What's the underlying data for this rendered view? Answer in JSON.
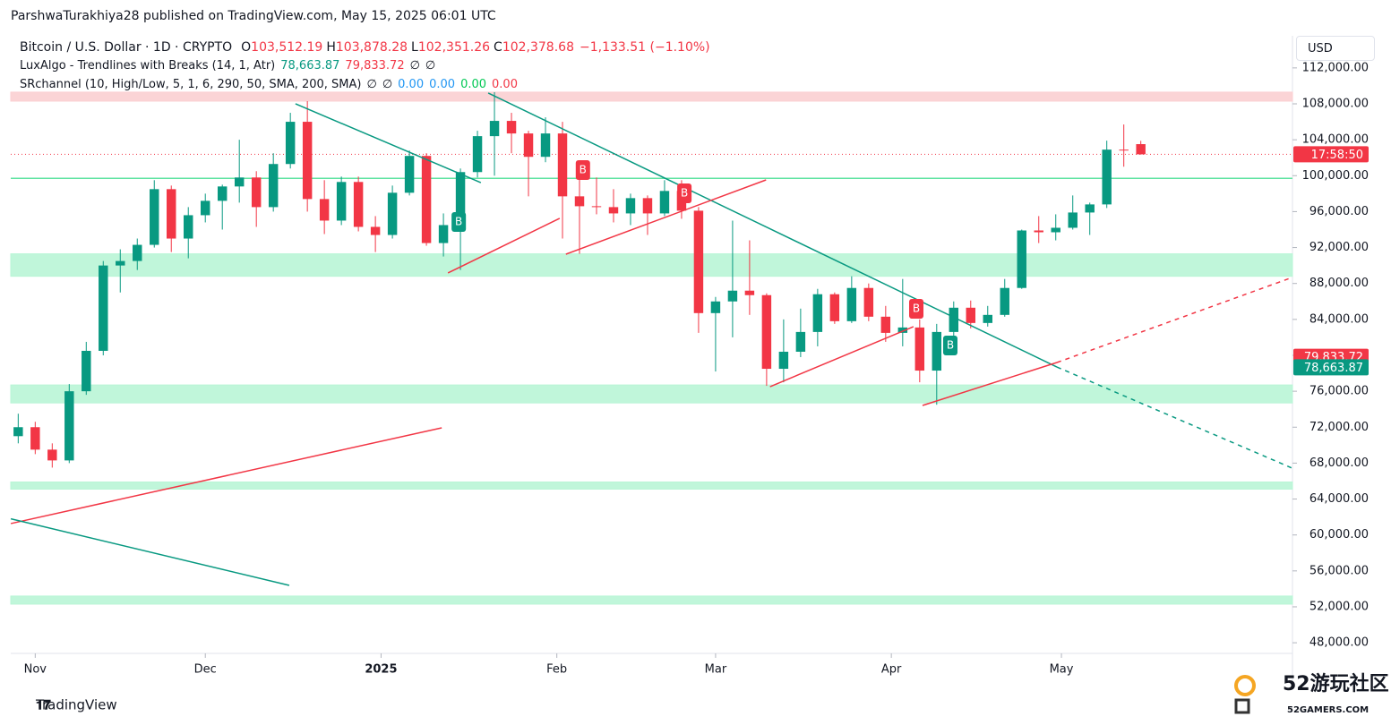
{
  "header": {
    "publisher": "ParshwaTurakhiya28 published on TradingView.com, May 15, 2025 06:01 UTC",
    "symbol": "Bitcoin / U.S. Dollar · 1D · CRYPTO",
    "ohlc": [
      {
        "label": "O",
        "value": "103,512.19"
      },
      {
        "label": "H",
        "value": "103,878.28"
      },
      {
        "label": "L",
        "value": "102,351.26"
      },
      {
        "label": "C",
        "value": "102,378.68"
      }
    ],
    "change": "−1,133.51 (−1.10%)",
    "currency": "USD",
    "brand": "TradingView",
    "watermark": "52游玩社区",
    "watermark_sub": "52GAMERS.COM"
  },
  "indicators": [
    {
      "name": "LuxAlgo - Trendlines with Breaks (14, 1, Atr)",
      "values": [
        {
          "text": "78,663.87",
          "color": "#089981"
        },
        {
          "text": "79,833.72",
          "color": "#f23645"
        },
        {
          "text": "∅",
          "color": "#131722"
        },
        {
          "text": "∅",
          "color": "#131722"
        }
      ]
    },
    {
      "name": "SRchannel (10, High/Low, 5, 1, 6, 290, 50, SMA, 200, SMA)",
      "values": [
        {
          "text": "∅",
          "color": "#131722"
        },
        {
          "text": "∅",
          "color": "#131722"
        },
        {
          "text": "0.00",
          "color": "#2196f3"
        },
        {
          "text": "0.00",
          "color": "#2196f3"
        },
        {
          "text": "0.00",
          "color": "#00c853"
        },
        {
          "text": "0.00",
          "color": "#f23645"
        }
      ]
    }
  ],
  "chart_data": {
    "type": "candlestick",
    "up_color": "#089981",
    "down_color": "#f23645",
    "x": [
      1,
      4,
      7,
      10,
      13,
      16,
      19,
      22,
      25,
      28,
      31,
      34,
      37,
      40,
      43,
      46,
      49,
      52,
      55,
      58,
      61,
      64,
      67,
      70,
      73,
      76,
      79,
      82,
      85,
      88,
      91,
      94,
      97,
      100,
      103,
      106,
      109,
      112,
      115,
      118,
      121,
      124,
      127,
      130,
      133,
      136,
      139,
      142,
      145,
      148,
      151,
      154,
      157,
      160,
      163,
      166,
      169,
      172,
      175,
      178,
      181,
      184,
      187,
      190,
      193,
      196,
      199
    ],
    "candles": [
      [
        71000,
        73500,
        70200,
        72000
      ],
      [
        72000,
        72600,
        69000,
        69500
      ],
      [
        69500,
        70200,
        67500,
        68300
      ],
      [
        68300,
        76800,
        68000,
        76000
      ],
      [
        76000,
        81500,
        75600,
        80500
      ],
      [
        80500,
        90500,
        80000,
        90000
      ],
      [
        90000,
        91800,
        87000,
        90500
      ],
      [
        90500,
        93000,
        89500,
        92300
      ],
      [
        92300,
        99500,
        92000,
        98500
      ],
      [
        98500,
        98900,
        91500,
        93000
      ],
      [
        93000,
        96500,
        90800,
        95600
      ],
      [
        95600,
        98000,
        94800,
        97200
      ],
      [
        97200,
        99000,
        94000,
        98800
      ],
      [
        98800,
        104000,
        97000,
        99800
      ],
      [
        99800,
        100500,
        94300,
        96500
      ],
      [
        96500,
        102500,
        96000,
        101300
      ],
      [
        101300,
        107000,
        100800,
        106000
      ],
      [
        106000,
        108300,
        96000,
        97400
      ],
      [
        97400,
        99500,
        93500,
        95000
      ],
      [
        95000,
        99900,
        94500,
        99300
      ],
      [
        99300,
        99900,
        93800,
        94300
      ],
      [
        94300,
        95500,
        91500,
        93400
      ],
      [
        93400,
        98900,
        93000,
        98100
      ],
      [
        98100,
        102800,
        97800,
        102200
      ],
      [
        102200,
        102500,
        92200,
        92500
      ],
      [
        92500,
        95800,
        91000,
        94500
      ],
      [
        94500,
        100800,
        89500,
        100400
      ],
      [
        100400,
        105000,
        99800,
        104400
      ],
      [
        104400,
        109300,
        100000,
        106100
      ],
      [
        106100,
        107000,
        102500,
        104700
      ],
      [
        104700,
        105000,
        97700,
        102100
      ],
      [
        102100,
        106500,
        101500,
        104700
      ],
      [
        104700,
        106000,
        93000,
        97700
      ],
      [
        97700,
        100500,
        91300,
        96600
      ],
      [
        96600,
        99800,
        95700,
        96500
      ],
      [
        96500,
        98500,
        94800,
        95800
      ],
      [
        95800,
        98000,
        94500,
        97500
      ],
      [
        97500,
        97800,
        93400,
        95800
      ],
      [
        95800,
        99500,
        95500,
        98300
      ],
      [
        98300,
        99500,
        95200,
        96100
      ],
      [
        96100,
        96500,
        82500,
        84700
      ],
      [
        84700,
        86500,
        78200,
        86000
      ],
      [
        86000,
        95000,
        82000,
        87200
      ],
      [
        87200,
        92800,
        84500,
        86700
      ],
      [
        86700,
        86900,
        76600,
        78500
      ],
      [
        78500,
        84000,
        77000,
        80400
      ],
      [
        80400,
        85200,
        79800,
        82600
      ],
      [
        82600,
        87400,
        81000,
        86800
      ],
      [
        86800,
        87000,
        83500,
        83800
      ],
      [
        83800,
        88800,
        83600,
        87500
      ],
      [
        87500,
        88000,
        83800,
        84300
      ],
      [
        84300,
        85500,
        81500,
        82500
      ],
      [
        82500,
        88500,
        81000,
        83100
      ],
      [
        83100,
        84000,
        77000,
        78300
      ],
      [
        78300,
        83500,
        74500,
        82600
      ],
      [
        82600,
        86000,
        80000,
        85300
      ],
      [
        85300,
        86100,
        83000,
        83600
      ],
      [
        83600,
        85500,
        83200,
        84500
      ],
      [
        84500,
        88500,
        84300,
        87500
      ],
      [
        87500,
        94000,
        87400,
        93900
      ],
      [
        93900,
        95500,
        92500,
        93700
      ],
      [
        93700,
        95700,
        92800,
        94200
      ],
      [
        94200,
        97800,
        94000,
        95900
      ],
      [
        95900,
        97000,
        93400,
        96800
      ],
      [
        96800,
        103900,
        96400,
        102900
      ],
      [
        102900,
        105700,
        101000,
        102800
      ],
      [
        103512.19,
        103878.28,
        102351.26,
        102378.68
      ]
    ],
    "xlim": [
      -0.316,
      225.75
    ],
    "ylim": [
      46815,
      115573
    ],
    "xticks": [
      {
        "value": 4,
        "label": "Nov"
      },
      {
        "value": 34,
        "label": "Dec"
      },
      {
        "value": 65,
        "label": "2025"
      },
      {
        "value": 96,
        "label": "Feb"
      },
      {
        "value": 124,
        "label": "Mar"
      },
      {
        "value": 155,
        "label": "Apr"
      },
      {
        "value": 185,
        "label": "May"
      }
    ],
    "yticks": [
      {
        "value": 48000,
        "label": "48,000.00"
      },
      {
        "value": 52000,
        "label": "52,000.00"
      },
      {
        "value": 56000,
        "label": "56,000.00"
      },
      {
        "value": 60000,
        "label": "60,000.00"
      },
      {
        "value": 64000,
        "label": "64,000.00"
      },
      {
        "value": 68000,
        "label": "68,000.00"
      },
      {
        "value": 72000,
        "label": "72,000.00"
      },
      {
        "value": 76000,
        "label": "76,000.00"
      },
      {
        "value": 80000,
        "label": "80,000.00"
      },
      {
        "value": 84000,
        "label": "84,000.00"
      },
      {
        "value": 88000,
        "label": "88,000.00"
      },
      {
        "value": 92000,
        "label": "92,000.00"
      },
      {
        "value": 96000,
        "label": "96,000.00"
      },
      {
        "value": 100000,
        "label": "100,000.00"
      },
      {
        "value": 104000,
        "label": "104,000.00"
      },
      {
        "value": 108000,
        "label": "108,000.00"
      },
      {
        "value": 112000,
        "label": "112,000.00"
      }
    ],
    "zones": [
      {
        "from": 108300,
        "to": 109300,
        "color": "#fbcfd2"
      },
      {
        "from": 88800,
        "to": 91300,
        "color": "#b9f5d6"
      },
      {
        "from": 74700,
        "to": 76700,
        "color": "#b9f5d6"
      },
      {
        "from": 65100,
        "to": 65900,
        "color": "#b9f5d6"
      },
      {
        "from": 52300,
        "to": 53200,
        "color": "#b9f5d6"
      }
    ],
    "levels": [
      {
        "value": 99700,
        "color": "#5ee3a1"
      }
    ],
    "trendlines": [
      {
        "x": [
          49.9,
          82.6
        ],
        "y": [
          108000,
          99230
        ],
        "color": "#089981"
      },
      {
        "x": [
          83.9,
          184.2
        ],
        "y": [
          109200,
          78700
        ],
        "color": "#089981"
      },
      {
        "x": [
          184.2,
          225.7
        ],
        "y": [
          78700,
          67440
        ],
        "color": "#089981",
        "dashed": true
      },
      {
        "x": [
          76.8,
          96.5
        ],
        "y": [
          89170,
          95250
        ],
        "color": "#f23645"
      },
      {
        "x": [
          97.6,
          132.9
        ],
        "y": [
          91260,
          99530
        ],
        "color": "#f23645"
      },
      {
        "x": [
          133.6,
          158.9
        ],
        "y": [
          76510,
          83190
        ],
        "color": "#f23645"
      },
      {
        "x": [
          160.5,
          184.2
        ],
        "y": [
          74420,
          79200
        ],
        "color": "#f23645"
      },
      {
        "x": [
          184.2,
          225.7
        ],
        "y": [
          79200,
          88670
        ],
        "color": "#f23645",
        "dashed": true
      },
      {
        "x": [
          -0.3,
          75.7
        ],
        "y": [
          61270,
          71930
        ],
        "color": "#f23645"
      },
      {
        "x": [
          -0.3,
          48.8
        ],
        "y": [
          61800,
          54390
        ],
        "color": "#089981"
      }
    ],
    "breaks": [
      {
        "x": 78.7,
        "y": 94850,
        "label": "B",
        "color": "#089981"
      },
      {
        "x": 100.6,
        "y": 100630,
        "label": "B",
        "color": "#f23645"
      },
      {
        "x": 118.5,
        "y": 98040,
        "label": "B",
        "color": "#f23645"
      },
      {
        "x": 159.4,
        "y": 85180,
        "label": "B",
        "color": "#f23645"
      },
      {
        "x": 165.4,
        "y": 81090,
        "label": "B",
        "color": "#089981"
      }
    ],
    "price_labels": [
      {
        "value": 102378.68,
        "label": "17:58:50",
        "color": "#f23645"
      },
      {
        "value": 79833.72,
        "label": "79,833.72",
        "color": "#f23645"
      },
      {
        "value": 78663.87,
        "label": "78,663.87",
        "color": "#089981"
      }
    ]
  }
}
